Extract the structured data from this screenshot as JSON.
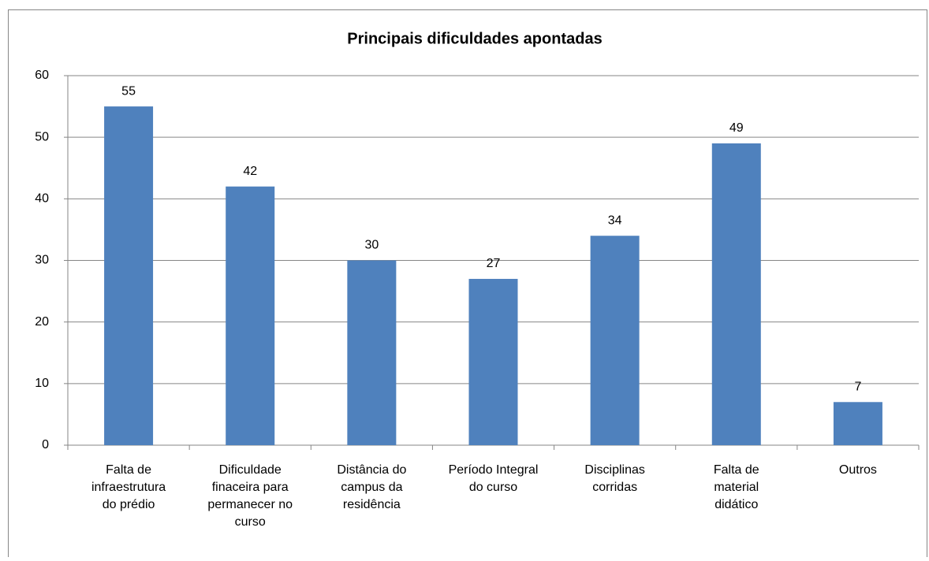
{
  "chart_data": {
    "type": "bar",
    "title": "Principais dificuldades apontadas",
    "categories": [
      "Falta de\ninfraestrutura\ndo prédio",
      "Dificuldade\nfinaceira para\npermanecer no\ncurso",
      "Distância do\ncampus da\nresidência",
      "Período Integral\ndo curso",
      "Disciplinas\ncorridas",
      "Falta de\nmaterial\ndidático",
      "Outros"
    ],
    "values": [
      55,
      42,
      30,
      27,
      34,
      49,
      7
    ],
    "color": "#4f81bd",
    "ylim": [
      0,
      60
    ],
    "yticks": [
      0,
      10,
      20,
      30,
      40,
      50,
      60
    ],
    "grid": true
  }
}
